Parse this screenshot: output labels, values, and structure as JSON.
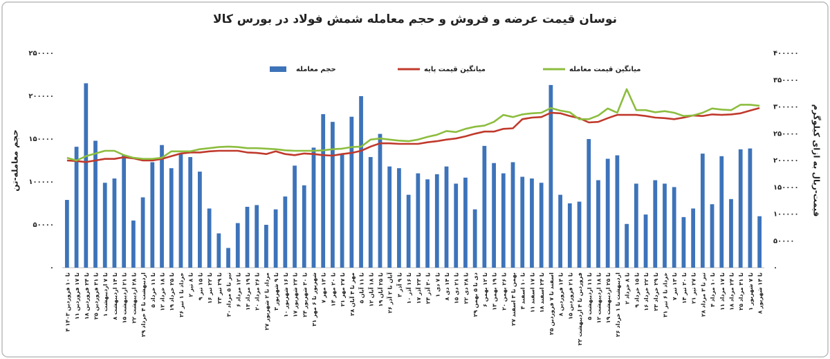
{
  "chart_data": {
    "type": "bar",
    "title": "نوسان قیمت عرضه و فروش و حجم معامله شمش فولاد در بورس کالا",
    "ylabel": "حجم معامله-تن",
    "y2label": "قیمت-ریال به ازای کیلوگرم",
    "categories": [
      "۴ تا ۱۰ فروردین ۱۴۰۳",
      "۱۱ تا ۱۷ فروردین",
      "۱۸ تا ۲۴ فروردین",
      "۲۵ تا ۳۱ فروردین",
      "۱ تا ۷ اردیبهشت",
      "۸ تا ۱۴ اردیبهشت",
      "۱۵ تا ۲۱ اردیبهشت",
      "۲۲ تا ۲۸ اردیبهشت",
      "۲۹ اردیبهشت تا ۴ خرداد",
      "۵ تا ۱۱ خرداد",
      "۱۲ تا ۱۸ خرداد",
      "۱۹ تا ۲۵ خرداد",
      "۲۶ خرداد تا ۱ تیر",
      "۲ تا ۸ تیر",
      "۹ تا ۱۵ تیر",
      "۱۶ تا ۲۲ تیر",
      "۲۳ تا ۲۹ تیر",
      "۳۰ تیر تا ۵ مرداد",
      "۶ تا ۱۲ مرداد",
      "۱۳ تا ۱۹ مرداد",
      "۲۰ تا ۲۶ مرداد",
      "۲۷ مرداد تا ۲ شهریور",
      "۳ تا ۹ شهریور",
      "۱۰ تا ۱۶ شهریور",
      "۱۷ تا ۲۳ شهریور",
      "۲۴ تا ۳۰ شهریور",
      "۳۱ شهریور تا ۶ مهر",
      "۷ تا ۱۳ مهر",
      "۱۴ تا ۲۰ مهر",
      "۲۱ تا ۲۷ مهر",
      "۲۸ مهر تا ۴ آبان",
      "۵ تا ۱۱ آبان",
      "۱۲ تا ۱۸ آبان",
      "۱۹ تا ۲۵ آبان",
      "۲۶ آبان تا ۲ آذر",
      "۳ تا ۹ آذر",
      "۱۰ تا ۱۶ آذر",
      "۱۷ تا ۲۳ آذر",
      "۲۴ تا ۳۰ آذر",
      "۱ تا ۷ دی",
      "۸ تا ۱۴ دی",
      "۱۵ تا ۲۱ دی",
      "۲۲ تا ۲۸ دی",
      "۲۹ دی تا ۵ بهمن",
      "۶ تا ۱۲ بهمن",
      "۱۳ تا ۱۹ بهمن",
      "۲۰ تا ۲۶ بهمن",
      "۲۷ بهمن تا ۳ اسفند",
      "۴ تا ۱۰ اسفند",
      "۱۱ تا ۱۷ اسفند",
      "۱۸ تا ۲۴ اسفند",
      "۲۵ اسفند تا ۷ فروردین",
      "۸ تا ۱۴ فروردین",
      "۱۵ تا ۲۱ فروردین",
      "۲۲ فروردین تا ۴ اردیبهشت",
      "۵ تا ۱۱ اردیبهشت",
      "۱۲ تا ۱۸ اردیبهشت",
      "۱۹ تا ۲۵ اردیبهشت",
      "۲۶ اردیبهشت تا ۱ خرداد",
      "۲ تا ۸ خرداد",
      "۹ تا ۱۵ خرداد",
      "۱۶ تا ۲۲ خرداد",
      "۲۳ تا ۲۹ خرداد",
      "۳۱ خرداد تا ۶ تیر",
      "۷ تا ۱۳ تیر",
      "۱۴ تا ۲۰ تیر",
      "۲۱ تا ۲۷ تیر",
      "۲۸ تیر تا ۳ مرداد",
      "۴ تا ۱۰ مرداد",
      "۱۱ تا ۱۷ مرداد",
      "۱۸ تا ۲۴ مرداد",
      "۲۵ تا ۳۱ مرداد",
      "۱ تا ۷ شهریور",
      "۸ تا ۱۴ شهریور"
    ],
    "series": [
      {
        "name": "حجم معامله",
        "type": "bar",
        "axis": "y",
        "color": "#3d73b9",
        "values": [
          79000,
          141000,
          215000,
          148000,
          99000,
          104000,
          131000,
          55000,
          82000,
          123000,
          143000,
          116000,
          133000,
          129000,
          112000,
          69000,
          40000,
          23000,
          52000,
          71000,
          73000,
          50000,
          68000,
          83000,
          119000,
          96000,
          140000,
          179000,
          170000,
          133000,
          176000,
          200000,
          129000,
          156000,
          118000,
          116000,
          85000,
          110000,
          103000,
          109000,
          118000,
          98000,
          105000,
          68000,
          142000,
          122000,
          110000,
          123000,
          106000,
          104000,
          99000,
          213000,
          85000,
          75000,
          77000,
          150000,
          102000,
          127000,
          131000,
          51000,
          98000,
          62000,
          102000,
          98000,
          94000,
          59000,
          69000,
          133000,
          74000,
          130000,
          80000,
          138000,
          139000,
          60000
        ]
      },
      {
        "name": "میانگین قیمت پایه",
        "type": "line",
        "axis": "y2",
        "color": "#c0392b",
        "values": [
          200000,
          199000,
          197000,
          200000,
          203000,
          203000,
          206000,
          204000,
          200000,
          200000,
          203000,
          208000,
          213000,
          215000,
          215000,
          217000,
          218000,
          218000,
          218000,
          215000,
          214000,
          212000,
          217000,
          212000,
          210000,
          213000,
          212000,
          210000,
          209000,
          212000,
          214000,
          218000,
          226000,
          232000,
          232000,
          231000,
          231000,
          231000,
          234000,
          236000,
          239000,
          241000,
          245000,
          250000,
          254000,
          254000,
          259000,
          260000,
          277000,
          280000,
          281000,
          289000,
          288000,
          283000,
          279000,
          271000,
          272000,
          279000,
          285000,
          285000,
          285000,
          283000,
          280000,
          279000,
          277000,
          280000,
          284000,
          283000,
          286000,
          285000,
          286000,
          288000,
          293000,
          298000
        ]
      },
      {
        "name": "میانگین قیمت معامله",
        "type": "line",
        "axis": "y2",
        "color": "#8cbd3e",
        "values": [
          205000,
          200000,
          208000,
          213000,
          218000,
          218000,
          210000,
          205000,
          203000,
          203000,
          205000,
          217000,
          217000,
          217000,
          221000,
          223000,
          225000,
          226000,
          225000,
          223000,
          223000,
          222000,
          221000,
          219000,
          218000,
          218000,
          218000,
          219000,
          221000,
          222000,
          225000,
          226000,
          239000,
          241000,
          239000,
          237000,
          236000,
          239000,
          244000,
          248000,
          255000,
          253000,
          259000,
          263000,
          265000,
          272000,
          285000,
          281000,
          286000,
          288000,
          289000,
          298000,
          293000,
          290000,
          277000,
          277000,
          284000,
          297000,
          289000,
          333000,
          294000,
          294000,
          290000,
          292000,
          289000,
          283000,
          284000,
          289000,
          297000,
          295000,
          294000,
          304000,
          304000,
          302000
        ]
      }
    ],
    "ylim": [
      0,
      250000
    ],
    "yticks": [
      {
        "value": 0,
        "label": "۰"
      },
      {
        "value": 50000,
        "label": "۵۰۰۰۰"
      },
      {
        "value": 100000,
        "label": "۱۰۰۰۰۰"
      },
      {
        "value": 150000,
        "label": "۱۵۰۰۰۰"
      },
      {
        "value": 200000,
        "label": "۲۰۰۰۰۰"
      },
      {
        "value": 250000,
        "label": "۲۵۰۰۰۰"
      }
    ],
    "y2lim": [
      0,
      400000
    ],
    "y2ticks": [
      {
        "value": 0,
        "label": "۰"
      },
      {
        "value": 50000,
        "label": "۵۰۰۰۰"
      },
      {
        "value": 100000,
        "label": "۱۰۰۰۰۰"
      },
      {
        "value": 150000,
        "label": "۱۵۰۰۰۰"
      },
      {
        "value": 200000,
        "label": "۲۰۰۰۰۰"
      },
      {
        "value": 250000,
        "label": "۲۵۰۰۰۰"
      },
      {
        "value": 300000,
        "label": "۳۰۰۰۰۰"
      },
      {
        "value": 350000,
        "label": "۳۵۰۰۰۰"
      },
      {
        "value": 400000,
        "label": "۴۰۰۰۰۰"
      }
    ],
    "grid": false,
    "legend": "top"
  }
}
